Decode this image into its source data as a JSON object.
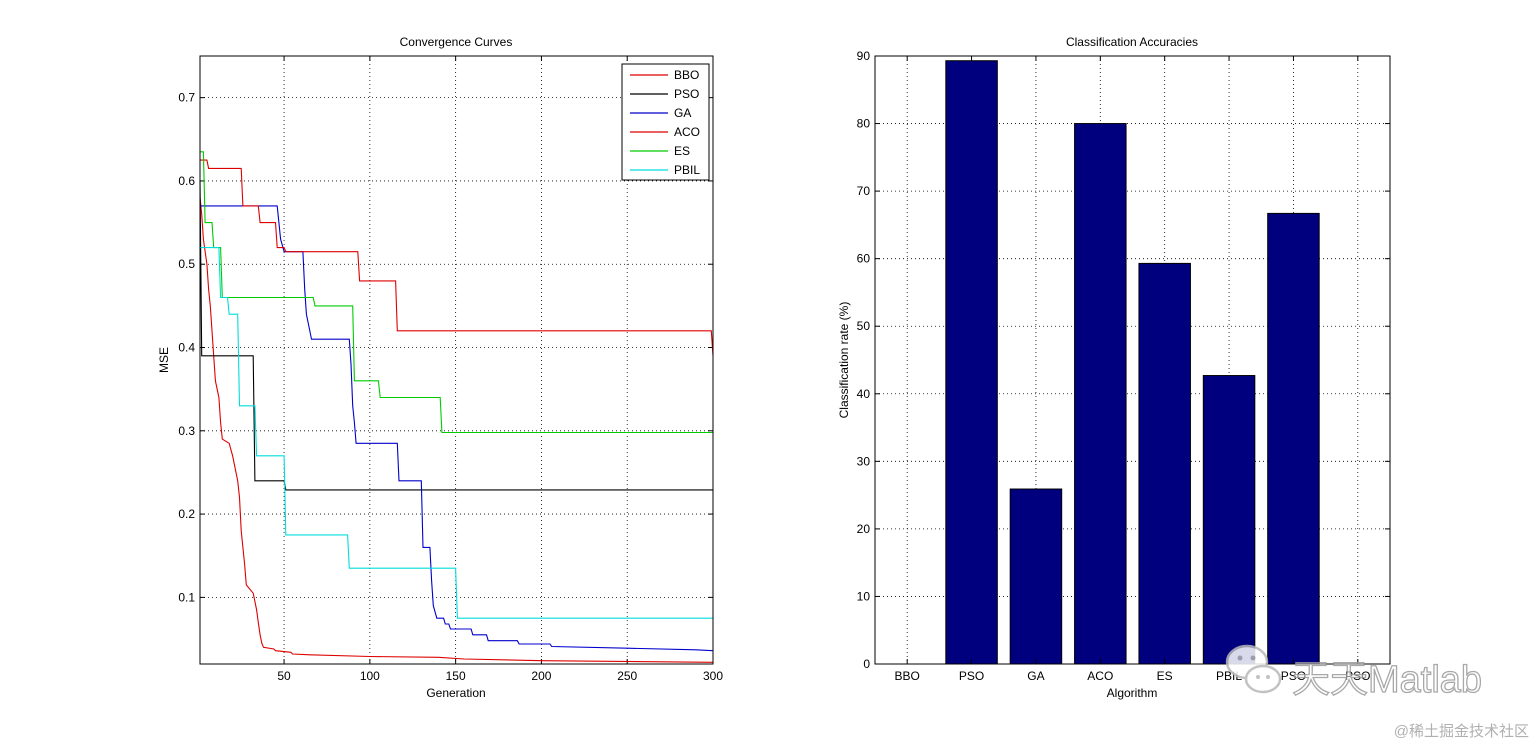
{
  "chart_data": [
    {
      "type": "line",
      "title": "Convergence Curves",
      "xlabel": "Generation",
      "ylabel": "MSE",
      "xlim": [
        1,
        300
      ],
      "ylim": [
        0.02,
        0.75
      ],
      "xticks": [
        50,
        100,
        150,
        200,
        250,
        300
      ],
      "yticks": [
        0.1,
        0.2,
        0.3,
        0.4,
        0.5,
        0.6,
        0.7
      ],
      "grid": true,
      "legend_position": "top-right",
      "series": [
        {
          "name": "BBO",
          "color": "#dd0000",
          "points": [
            [
              1,
              0.58
            ],
            [
              2,
              0.56
            ],
            [
              3,
              0.53
            ],
            [
              5,
              0.5
            ],
            [
              6,
              0.47
            ],
            [
              7,
              0.45
            ],
            [
              8,
              0.42
            ],
            [
              9,
              0.39
            ],
            [
              10,
              0.36
            ],
            [
              12,
              0.34
            ],
            [
              13,
              0.31
            ],
            [
              14,
              0.29
            ],
            [
              18,
              0.285
            ],
            [
              20,
              0.27
            ],
            [
              21,
              0.26
            ],
            [
              23,
              0.24
            ],
            [
              24,
              0.22
            ],
            [
              25,
              0.18
            ],
            [
              26,
              0.16
            ],
            [
              27,
              0.14
            ],
            [
              28,
              0.115
            ],
            [
              32,
              0.105
            ],
            [
              33,
              0.095
            ],
            [
              34,
              0.085
            ],
            [
              35,
              0.07
            ],
            [
              36,
              0.055
            ],
            [
              37,
              0.045
            ],
            [
              38,
              0.04
            ],
            [
              44,
              0.038
            ],
            [
              45,
              0.036
            ],
            [
              54,
              0.034
            ],
            [
              55,
              0.032
            ],
            [
              65,
              0.031
            ],
            [
              100,
              0.029
            ],
            [
              140,
              0.028
            ],
            [
              155,
              0.026
            ],
            [
              200,
              0.024
            ],
            [
              300,
              0.022
            ]
          ]
        },
        {
          "name": "PSO",
          "color": "#000000",
          "points": [
            [
              1,
              0.6
            ],
            [
              2,
              0.39
            ],
            [
              32,
              0.39
            ],
            [
              33,
              0.24
            ],
            [
              50,
              0.24
            ],
            [
              51,
              0.229
            ],
            [
              300,
              0.229
            ]
          ]
        },
        {
          "name": "GA",
          "color": "#0000cc",
          "points": [
            [
              1,
              0.57
            ],
            [
              46,
              0.57
            ],
            [
              47,
              0.55
            ],
            [
              48,
              0.53
            ],
            [
              50,
              0.515
            ],
            [
              61,
              0.515
            ],
            [
              62,
              0.47
            ],
            [
              63,
              0.44
            ],
            [
              65,
              0.42
            ],
            [
              66,
              0.41
            ],
            [
              88,
              0.41
            ],
            [
              89,
              0.38
            ],
            [
              90,
              0.33
            ],
            [
              91,
              0.31
            ],
            [
              92,
              0.285
            ],
            [
              116,
              0.285
            ],
            [
              117,
              0.24
            ],
            [
              130,
              0.24
            ],
            [
              131,
              0.16
            ],
            [
              135,
              0.16
            ],
            [
              136,
              0.12
            ],
            [
              137,
              0.09
            ],
            [
              139,
              0.075
            ],
            [
              143,
              0.075
            ],
            [
              144,
              0.068
            ],
            [
              146,
              0.068
            ],
            [
              147,
              0.062
            ],
            [
              159,
              0.062
            ],
            [
              160,
              0.055
            ],
            [
              168,
              0.055
            ],
            [
              169,
              0.048
            ],
            [
              186,
              0.048
            ],
            [
              187,
              0.044
            ],
            [
              205,
              0.044
            ],
            [
              206,
              0.041
            ],
            [
              250,
              0.039
            ],
            [
              290,
              0.037
            ],
            [
              300,
              0.036
            ]
          ]
        },
        {
          "name": "ACO",
          "color": "#dd0000",
          "points": [
            [
              1,
              0.625
            ],
            [
              5,
              0.625
            ],
            [
              6,
              0.615
            ],
            [
              25,
              0.615
            ],
            [
              26,
              0.57
            ],
            [
              35,
              0.57
            ],
            [
              36,
              0.55
            ],
            [
              45,
              0.55
            ],
            [
              46,
              0.52
            ],
            [
              50,
              0.52
            ],
            [
              51,
              0.515
            ],
            [
              93,
              0.515
            ],
            [
              94,
              0.48
            ],
            [
              115,
              0.48
            ],
            [
              116,
              0.42
            ],
            [
              299,
              0.42
            ],
            [
              300,
              0.39
            ]
          ]
        },
        {
          "name": "ES",
          "color": "#00cc00",
          "points": [
            [
              1,
              0.635
            ],
            [
              3,
              0.635
            ],
            [
              4,
              0.55
            ],
            [
              8,
              0.55
            ],
            [
              9,
              0.52
            ],
            [
              13,
              0.52
            ],
            [
              14,
              0.46
            ],
            [
              67,
              0.46
            ],
            [
              68,
              0.45
            ],
            [
              90,
              0.45
            ],
            [
              91,
              0.36
            ],
            [
              105,
              0.36
            ],
            [
              106,
              0.34
            ],
            [
              141,
              0.34
            ],
            [
              142,
              0.298
            ],
            [
              300,
              0.298
            ]
          ]
        },
        {
          "name": "PBIL",
          "color": "#00dddd",
          "points": [
            [
              1,
              0.52
            ],
            [
              12,
              0.52
            ],
            [
              13,
              0.46
            ],
            [
              17,
              0.46
            ],
            [
              18,
              0.44
            ],
            [
              23,
              0.44
            ],
            [
              24,
              0.33
            ],
            [
              33,
              0.33
            ],
            [
              34,
              0.27
            ],
            [
              50,
              0.27
            ],
            [
              51,
              0.175
            ],
            [
              87,
              0.175
            ],
            [
              88,
              0.135
            ],
            [
              150,
              0.135
            ],
            [
              151,
              0.075
            ],
            [
              300,
              0.075
            ]
          ]
        }
      ]
    },
    {
      "type": "bar",
      "title": "Classification Accuracies",
      "xlabel": "Algorithm",
      "ylabel": "Classification rate (%)",
      "ylim": [
        0,
        90
      ],
      "yticks": [
        0,
        10,
        20,
        30,
        40,
        50,
        60,
        70,
        80,
        90
      ],
      "grid": true,
      "bar_color": "#00007f",
      "categories": [
        "BBO",
        "PSO",
        "GA",
        "ACO",
        "ES",
        "PBIL",
        "PSO",
        "PSO"
      ],
      "values": [
        0,
        89.3,
        25.9,
        80.0,
        59.3,
        42.7,
        66.7,
        0
      ]
    }
  ],
  "watermark": {
    "brand": "天天Matlab",
    "credit": "@稀土掘金技术社区"
  }
}
